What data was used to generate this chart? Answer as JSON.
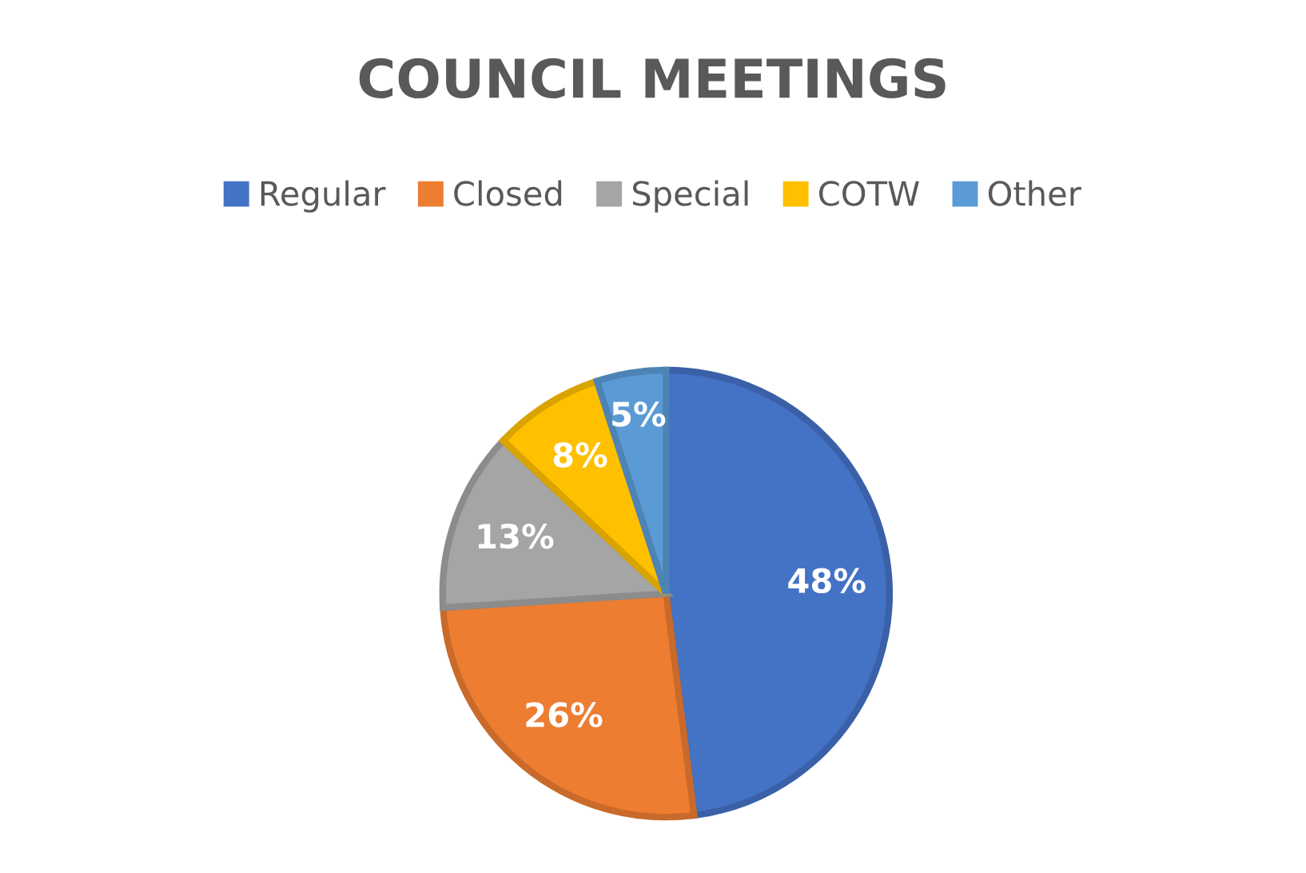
{
  "chart_data": {
    "type": "pie",
    "title": "COUNCIL MEETINGS",
    "categories": [
      "Regular",
      "Closed",
      "Special",
      "COTW",
      "Other"
    ],
    "values": [
      48,
      26,
      13,
      8,
      5
    ],
    "colors": [
      "#4472c4",
      "#ed7d31",
      "#a5a5a5",
      "#ffc000",
      "#5b9bd5"
    ],
    "value_labels": [
      "48%",
      "26%",
      "13%",
      "8%",
      "5%"
    ],
    "legend": "top"
  }
}
